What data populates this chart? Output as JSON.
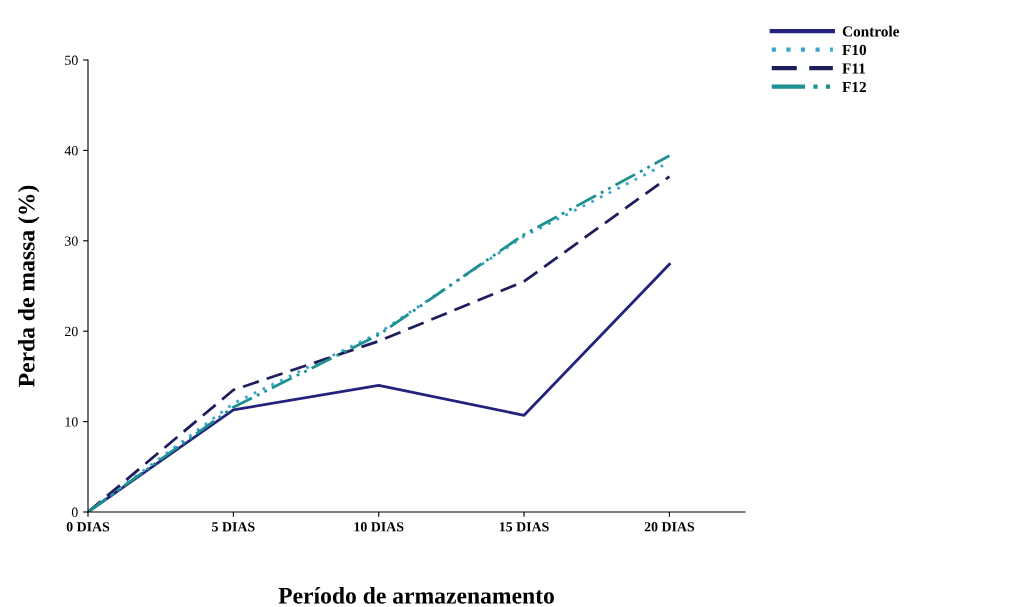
{
  "chart_data": {
    "type": "line",
    "xlabel": "Período de armazenamento",
    "ylabel": "Perda de massa (%)",
    "categories": [
      "0 DIAS",
      "5 DIAS",
      "10 DIAS",
      "15 DIAS",
      "20 DIAS"
    ],
    "series": [
      {
        "name": "Controle",
        "color": "#23237e",
        "line_style": "solid",
        "values": [
          0,
          11.3,
          14.0,
          10.7,
          27.4
        ]
      },
      {
        "name": "F10",
        "color": "#3aa6cf",
        "line_style": "dotted",
        "values": [
          0,
          12.0,
          19.8,
          30.5,
          38.7
        ]
      },
      {
        "name": "F11",
        "color": "#1e1e5c",
        "line_style": "dashed",
        "values": [
          0,
          13.5,
          18.9,
          25.5,
          37.1
        ]
      },
      {
        "name": "F12",
        "color": "#1d9090",
        "line_style": "dashdotdot",
        "values": [
          0,
          11.6,
          19.6,
          30.7,
          39.4
        ]
      }
    ],
    "ylim": [
      0,
      50
    ],
    "yticks": [
      0,
      10,
      20,
      30,
      40,
      50
    ],
    "grid": false,
    "legend": "top right",
    "marker": "none"
  }
}
